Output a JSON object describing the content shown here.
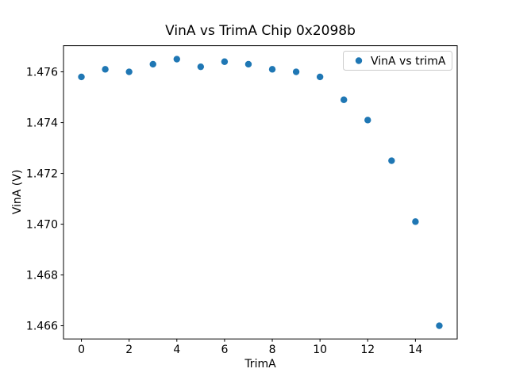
{
  "chart_data": {
    "type": "scatter",
    "title": "VinA vs TrimA Chip 0x2098b",
    "xlabel": "TrimA",
    "ylabel": "VinA (V)",
    "x": [
      0,
      1,
      2,
      3,
      4,
      5,
      6,
      7,
      8,
      9,
      10,
      11,
      12,
      13,
      14,
      15
    ],
    "y": [
      1.4758,
      1.4761,
      1.476,
      1.4763,
      1.4765,
      1.4762,
      1.4764,
      1.4763,
      1.4761,
      1.476,
      1.4758,
      1.4749,
      1.4741,
      1.4725,
      1.4701,
      1.466
    ],
    "xlim": [
      -0.75,
      15.75
    ],
    "ylim": [
      1.46548,
      1.47703
    ],
    "xticks": [
      0,
      2,
      4,
      6,
      8,
      10,
      12,
      14
    ],
    "yticks": [
      1.466,
      1.468,
      1.47,
      1.472,
      1.474,
      1.476
    ],
    "ytick_decimals": 3,
    "legend": {
      "label": "VinA vs trimA",
      "position": "upper right"
    },
    "marker_color": "#1f77b4",
    "spine_color": "#000000",
    "legend_border_color": "#cccccc",
    "grid": false
  }
}
